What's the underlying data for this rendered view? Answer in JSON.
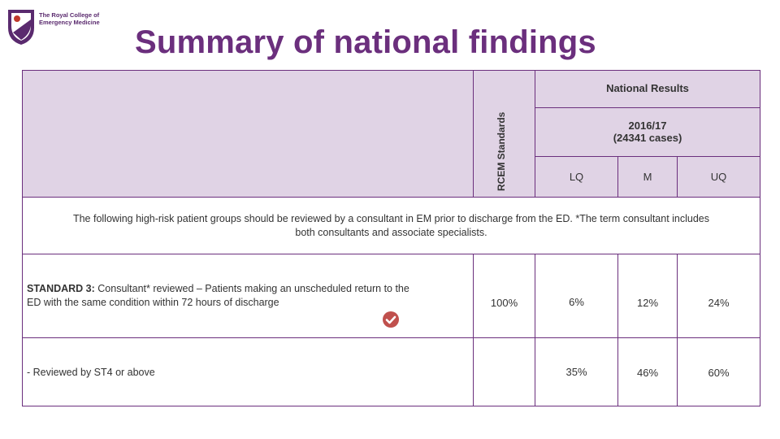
{
  "logo": {
    "line1": "The Royal College of",
    "line2": "Emergency Medicine"
  },
  "title": "Summary of national findings",
  "table": {
    "national_results": "National Results",
    "rcem_standards": "RCEM Standards",
    "period_line1": "2016/17",
    "period_line2": "(24341 cases)",
    "lq": "LQ",
    "m": "M",
    "uq": "UQ",
    "intro_line1": "The following high-risk patient groups should be reviewed by a consultant in EM prior to discharge from the  ED.  *The term consultant includes",
    "intro_line2": "both consultants and associate specialists.",
    "rows": [
      {
        "label_bold": "STANDARD 3:",
        "label_rest": " Consultant* reviewed – Patients making an unscheduled return to the",
        "label_line2": "ED with the same condition within 72 hours of discharge",
        "standard": "100%",
        "lq": "6%",
        "m": "12%",
        "uq": "24%"
      },
      {
        "label": "- Reviewed by ST4 or above",
        "standard": "",
        "lq": "35%",
        "m": "46%",
        "uq": "60%"
      }
    ]
  },
  "colors": {
    "brand_purple": "#6b2f7d",
    "header_bg": "#e0d3e5",
    "check_red": "#c0504d"
  },
  "icons": [
    "college-logo-icon",
    "checkmark-icon"
  ]
}
